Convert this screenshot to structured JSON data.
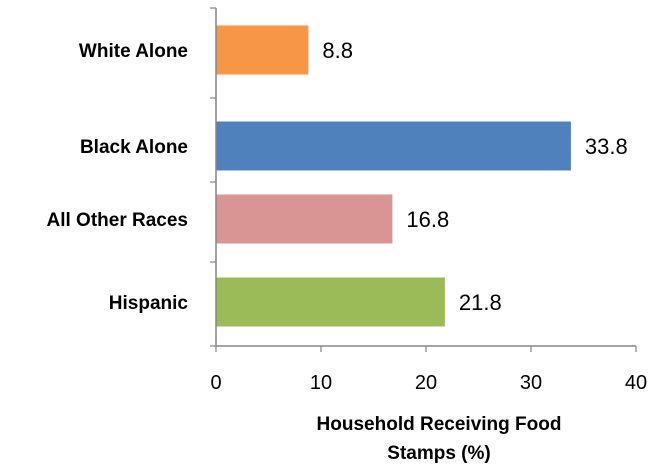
{
  "chart_data": {
    "type": "bar",
    "orientation": "horizontal",
    "categories": [
      "White Alone",
      "Black Alone",
      "All Other Races",
      "Hispanic"
    ],
    "values": [
      8.8,
      33.8,
      16.8,
      21.8
    ],
    "value_labels": [
      "8.8",
      "33.8",
      "16.8",
      "21.8"
    ],
    "colors": [
      "#F79646",
      "#4F81BD",
      "#D99594",
      "#9BBB59"
    ],
    "xlabel_lines": [
      "Household Receiving Food",
      "Stamps (%)"
    ],
    "xlim": [
      0,
      40
    ],
    "xticks": [
      0,
      10,
      20,
      30,
      40
    ],
    "tick_labels": [
      "0",
      "10",
      "20",
      "30",
      "40"
    ],
    "grid": false,
    "legend": "none",
    "axis_color": "#868686"
  }
}
